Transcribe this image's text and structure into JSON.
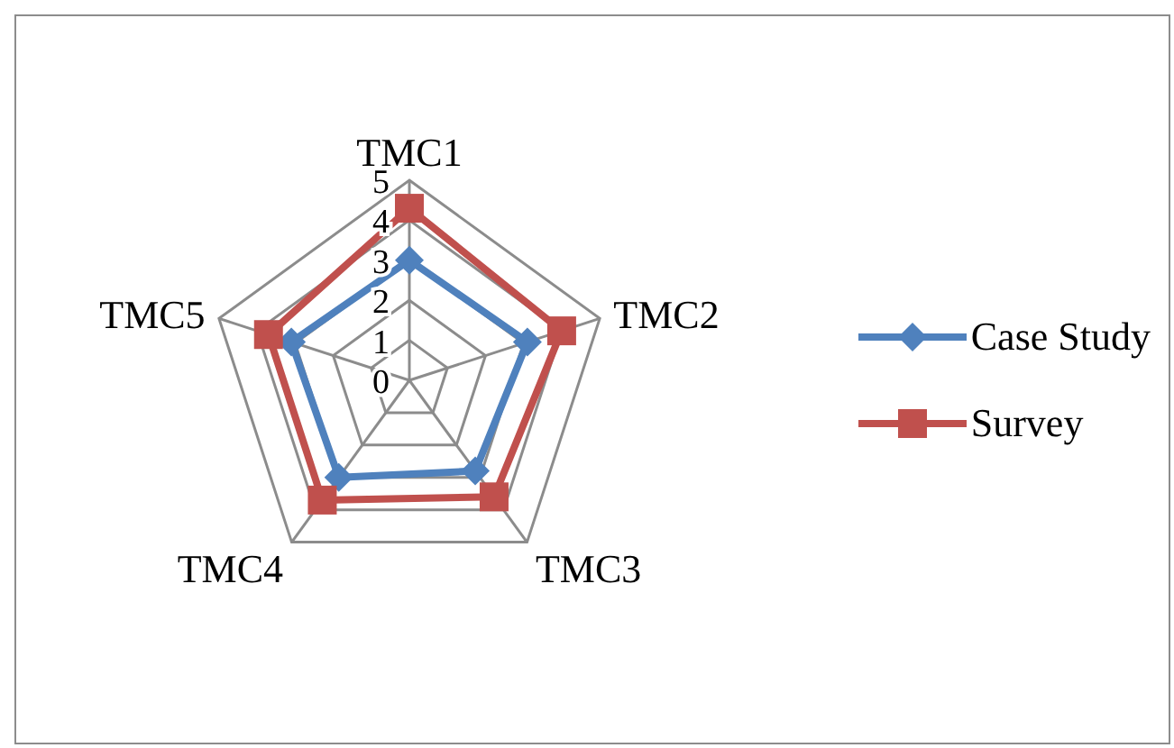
{
  "chart_data": {
    "type": "radar",
    "categories": [
      "TMC1",
      "TMC2",
      "TMC3",
      "TMC4",
      "TMC5"
    ],
    "series": [
      {
        "name": "Case Study",
        "color": "#4f81bd",
        "marker": "diamond",
        "values": [
          3,
          3.1,
          2.8,
          3,
          3.1
        ]
      },
      {
        "name": "Survey",
        "color": "#c0504d",
        "marker": "square",
        "values": [
          4.3,
          4,
          3.6,
          3.7,
          3.7
        ]
      }
    ],
    "ylim": [
      0,
      5
    ],
    "yticks": [
      0,
      1,
      2,
      3,
      4,
      5
    ],
    "grid": true,
    "legend": "right"
  }
}
